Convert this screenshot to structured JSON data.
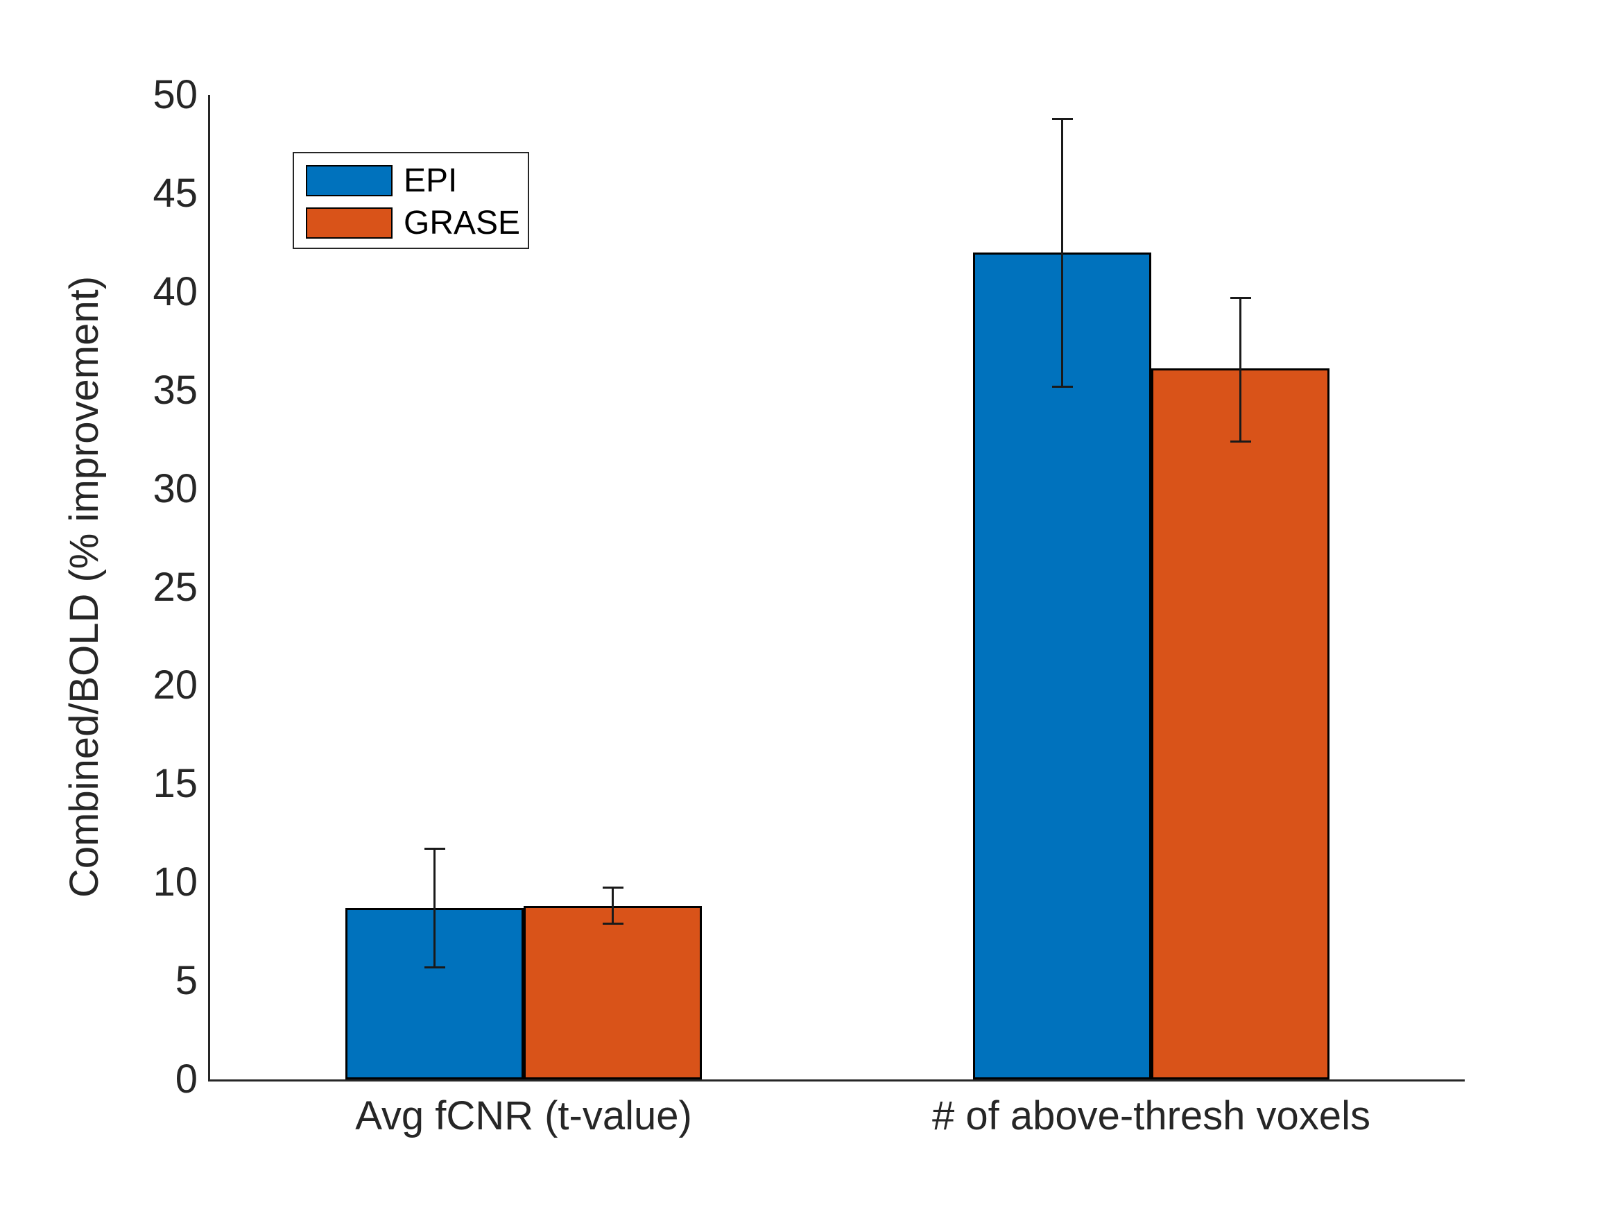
{
  "figure": {
    "background": "#ffffff",
    "axis_color": "#262626",
    "bar_edge_color": "#000000",
    "error_bar_color": "#1a1a1a"
  },
  "chart_data": {
    "type": "bar",
    "title": "",
    "categories": [
      "Avg fCNR (t-value)",
      "# of above-thresh voxels"
    ],
    "series": [
      {
        "name": "EPI",
        "color": "#0072BD",
        "values": [
          8.7,
          42.0
        ],
        "err_plus": [
          3.0,
          6.8
        ],
        "err_minus": [
          3.0,
          6.8
        ]
      },
      {
        "name": "GRASE",
        "color": "#D95319",
        "values": [
          8.8,
          36.1
        ],
        "err_plus": [
          0.95,
          3.6
        ],
        "err_minus": [
          0.9,
          3.7
        ]
      }
    ],
    "xlabel": "",
    "ylabel": "Combined/BOLD (% improvement)",
    "ylim": [
      0,
      50
    ],
    "yticks": [
      0,
      5,
      10,
      15,
      20,
      25,
      30,
      35,
      40,
      45,
      50
    ],
    "grid": false,
    "legend": {
      "position": "northwest",
      "entries": [
        "EPI",
        "GRASE"
      ]
    }
  }
}
